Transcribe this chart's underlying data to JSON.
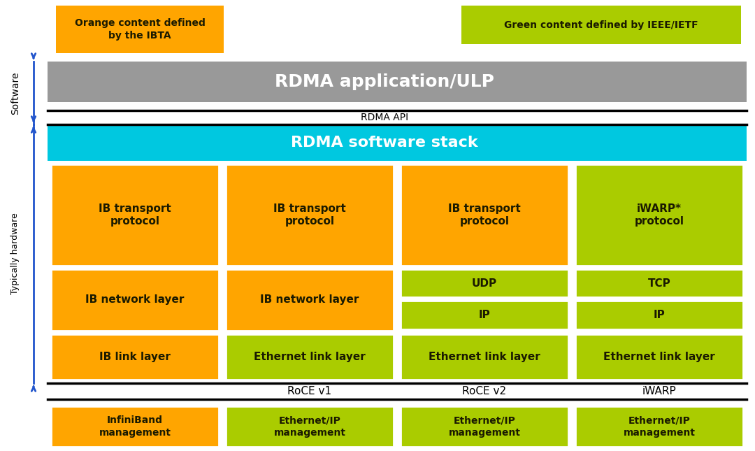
{
  "bg_color": "#ffffff",
  "orange": "#FFA500",
  "yellow_green": "#AACC00",
  "cyan": "#00C8E0",
  "gray": "#999999",
  "dark_text": "#1a1a00",
  "white_text": "#ffffff",
  "black_text": "#000000",
  "legend_orange_text": "Orange content defined\nby the IBTA",
  "legend_green_text": "Green content defined by IEEE/IETF",
  "rdma_app_text": "RDMA application/ULP",
  "rdma_api_text": "RDMA API",
  "rdma_stack_text": "RDMA software stack",
  "col_labels": [
    "",
    "RoCE v1",
    "RoCE v2",
    "iWARP"
  ],
  "software_label": "Software",
  "hardware_label": "Typically hardware",
  "bottom_labels": [
    "InfiniBand\nmanagement",
    "Ethernet/IP\nmanagement",
    "Ethernet/IP\nmanagement",
    "Ethernet/IP\nmanagement"
  ],
  "bottom_colors": [
    "#FFA500",
    "#AACC00",
    "#AACC00",
    "#AACC00"
  ]
}
